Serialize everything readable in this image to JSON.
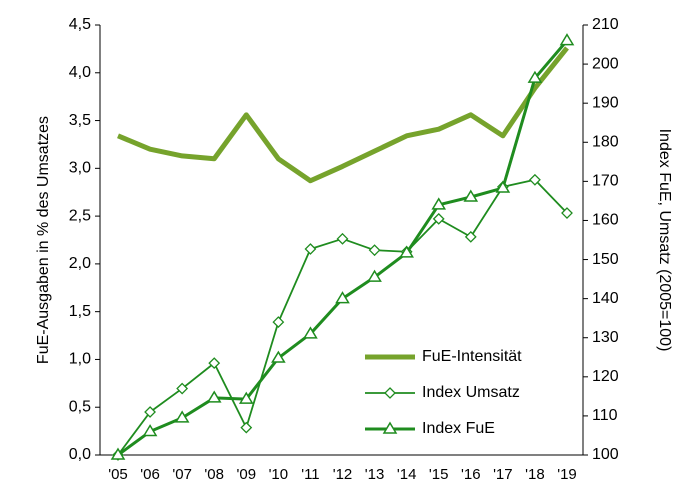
{
  "chart_data": {
    "type": "line",
    "y_label": "FuE-Ausgaben in % des Umsatzes",
    "y2_label": "Index FuE, Umsatz (2005=100)",
    "categories": [
      "'05",
      "'06",
      "'07",
      "'08",
      "'09",
      "'10",
      "'11",
      "'12",
      "'13",
      "'14",
      "'15",
      "'16",
      "'17",
      "'18",
      "'19"
    ],
    "ylim": [
      0,
      4.5
    ],
    "yticks": [
      {
        "value": 0,
        "label": "0,0"
      },
      {
        "value": 0.5,
        "label": "0,5"
      },
      {
        "value": 1,
        "label": "1,0"
      },
      {
        "value": 1.5,
        "label": "1,5"
      },
      {
        "value": 2,
        "label": "2,0"
      },
      {
        "value": 2.5,
        "label": "2,5"
      },
      {
        "value": 3,
        "label": "3,0"
      },
      {
        "value": 3.5,
        "label": "3,5"
      },
      {
        "value": 4,
        "label": "4,0"
      },
      {
        "value": 4.5,
        "label": "4,5"
      }
    ],
    "y2lim": [
      100,
      210
    ],
    "y2ticks": [
      100,
      110,
      120,
      130,
      140,
      150,
      160,
      170,
      180,
      190,
      200,
      210
    ],
    "legend": "lower right",
    "series": [
      {
        "name": "FuE-Intensität",
        "color": "#76a32c",
        "marker": "none",
        "values": [
          3.34,
          3.2,
          3.13,
          3.1,
          3.56,
          3.1,
          2.87,
          3.02,
          3.18,
          3.34,
          3.41,
          3.56,
          3.34,
          3.84,
          4.26
        ]
      },
      {
        "name": "Index Umsatz",
        "color": "#1f8c1f",
        "marker": "diamond",
        "axis": "y2",
        "values": [
          100,
          111,
          117,
          123.5,
          107,
          134,
          152.7,
          155.3,
          152.4,
          152,
          160.4,
          155.8,
          168.6,
          170.4,
          161.9
        ]
      },
      {
        "name": "Index FuE",
        "color": "#1f8c1f",
        "marker": "triangle",
        "axis": "y2",
        "values": [
          100,
          106,
          109.5,
          114.6,
          114.3,
          124.8,
          131,
          140,
          145.5,
          151.7,
          164,
          166,
          168.3,
          196.4,
          206
        ]
      }
    ]
  }
}
